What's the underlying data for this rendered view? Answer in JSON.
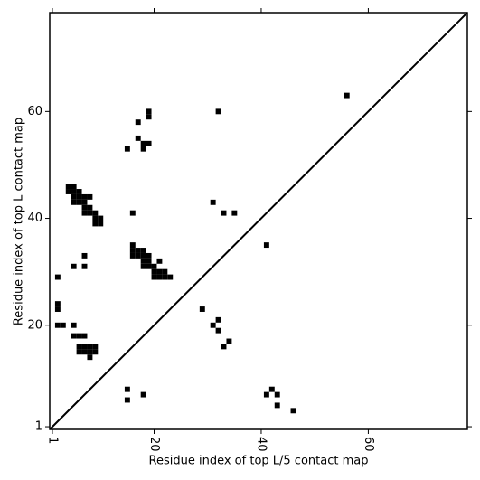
{
  "chart_data": {
    "type": "scatter",
    "xlabel": "Residue index of top L/5 contact map",
    "ylabel": "Residue index of top L contact map",
    "xlim": [
      0.5,
      78.5
    ],
    "ylim": [
      0.5,
      78.5
    ],
    "xticks": [
      1,
      20,
      40,
      60
    ],
    "yticks": [
      1,
      20,
      40,
      60
    ],
    "color": "#000000",
    "marker": "square",
    "diagonal": true,
    "x": [
      56,
      19,
      19,
      17,
      17,
      18,
      19,
      18,
      15,
      32,
      31,
      33,
      35,
      16,
      4,
      5,
      4,
      5,
      6,
      5,
      6,
      7,
      8,
      5,
      6,
      7,
      7,
      8,
      7,
      8,
      9,
      9,
      10,
      9,
      10,
      41,
      16,
      16,
      17,
      18,
      16,
      17,
      18,
      19,
      18,
      19,
      21,
      18,
      19,
      20,
      20,
      21,
      22,
      20,
      21,
      22,
      23,
      7,
      7,
      5,
      2,
      2,
      2,
      2,
      3,
      5,
      5,
      6,
      7,
      6,
      7,
      8,
      9,
      6,
      7,
      8,
      9,
      8,
      29,
      32,
      31,
      32,
      34,
      33,
      15,
      15,
      18,
      41,
      42,
      43,
      43,
      46
    ],
    "y": [
      63,
      60,
      59,
      58,
      55,
      54,
      54,
      53,
      53,
      60,
      43,
      41,
      41,
      41,
      46,
      46,
      45,
      45,
      45,
      44,
      44,
      44,
      44,
      43,
      43,
      43,
      42,
      42,
      41,
      41,
      41,
      40,
      40,
      39,
      39,
      35,
      35,
      34,
      34,
      34,
      33,
      33,
      33,
      33,
      32,
      32,
      32,
      31,
      31,
      31,
      30,
      30,
      30,
      29,
      29,
      29,
      29,
      33,
      31,
      31,
      29,
      24,
      23,
      20,
      20,
      20,
      18,
      18,
      18,
      16,
      16,
      16,
      16,
      15,
      15,
      15,
      15,
      14,
      23,
      21,
      20,
      19,
      17,
      16,
      8,
      6,
      7,
      7,
      8,
      7,
      5,
      4
    ]
  }
}
